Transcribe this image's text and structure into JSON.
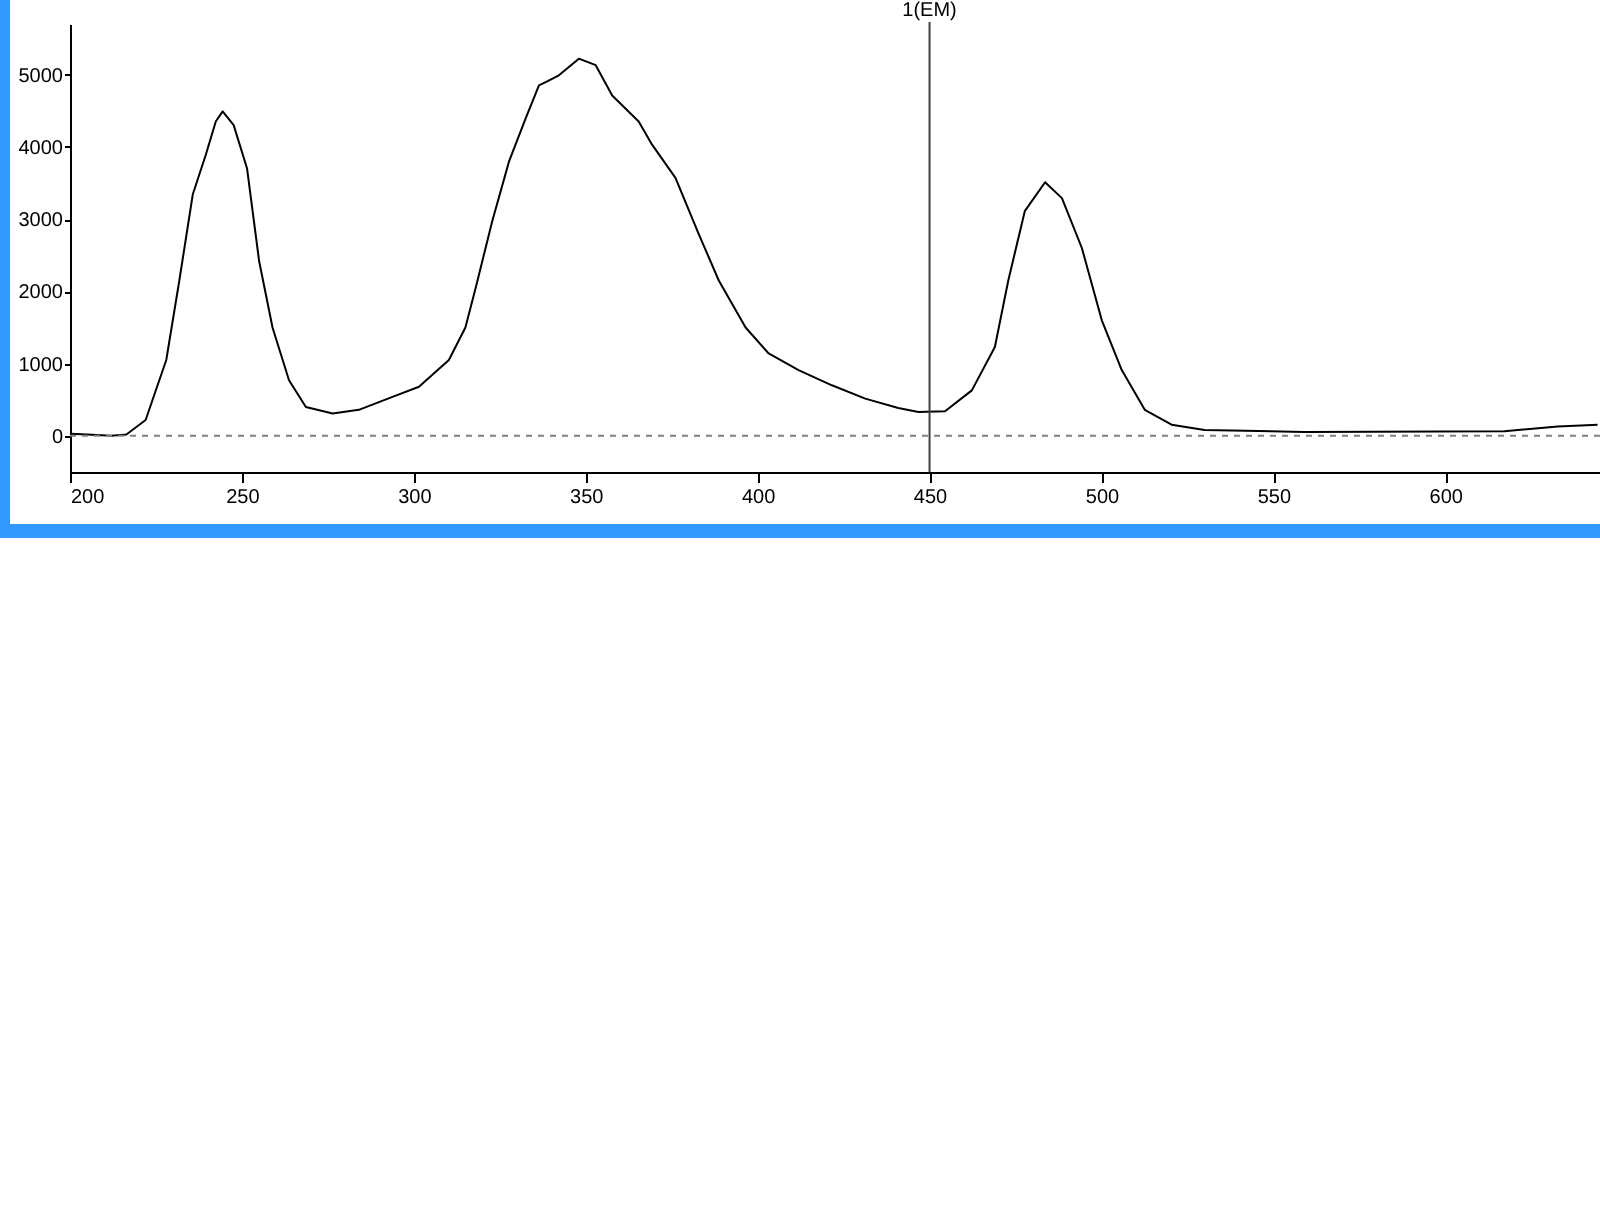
{
  "chart_data": {
    "type": "line",
    "x": [
      200,
      205,
      212,
      216.4,
      222,
      228,
      231.8,
      235.7,
      239.5,
      242.4,
      244.4,
      247.6,
      251.5,
      255,
      258.9,
      263.7,
      268.6,
      276.4,
      284,
      293.8,
      301.5,
      310.2,
      315,
      318,
      322.8,
      327.7,
      332.5,
      336.4,
      338.5,
      342.2,
      348,
      352.9,
      357.7,
      365.4,
      369.3,
      376.1,
      382.9,
      388.7,
      396.5,
      403.2,
      411.9,
      421.6,
      431.3,
      440.9,
      446.8,
      454.5,
      462.3,
      469,
      472.9,
      477.7,
      483.6,
      488.5,
      494.3,
      500.1,
      505.9,
      512.6,
      520.4,
      530,
      559,
      617.2,
      632.7,
      644.3
    ],
    "series": [
      {
        "color": "#000000",
        "values": [
          30,
          20,
          0,
          20,
          220,
          1050,
          2150,
          3340,
          3890,
          4350,
          4490,
          4300,
          3700,
          2420,
          1500,
          770,
          400,
          310,
          360,
          540,
          680,
          1050,
          1500,
          2050,
          2970,
          3800,
          4390,
          4850,
          4900,
          4990,
          5220,
          5130,
          4710,
          4350,
          4030,
          3570,
          2790,
          2150,
          1500,
          1140,
          910,
          700,
          515,
          385,
          330,
          340,
          630,
          1230,
          2150,
          3110,
          3510,
          3290,
          2600,
          1600,
          910,
          360,
          155,
          80,
          55,
          65,
          130,
          155
        ]
      }
    ],
    "xlim": [
      200,
      645
    ],
    "xticks": [
      200,
      250,
      300,
      350,
      400,
      450,
      500,
      550,
      600
    ],
    "ylim": [
      -500,
      5700
    ],
    "yticks": [
      0,
      1000,
      2000,
      3000,
      4000,
      5000
    ],
    "ref_lines": [
      {
        "axis": "x",
        "value": 450,
        "label": "1(EM)",
        "color": "#404040",
        "line_style": "solid"
      },
      {
        "axis": "y",
        "value": 0,
        "color": "#808080",
        "line_style": "dashed"
      }
    ],
    "grid": false
  }
}
